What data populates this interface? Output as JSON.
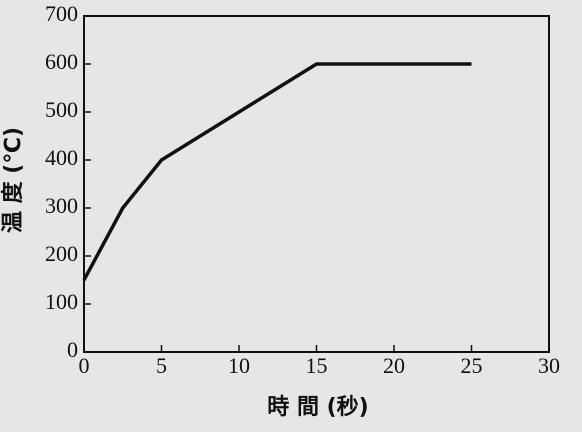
{
  "chart_data": {
    "type": "line",
    "y_label": "温 度 (℃)",
    "x_label": "時 間 (秒)",
    "x": [
      0,
      2.5,
      5,
      15,
      25
    ],
    "series": [
      {
        "color": "#111111",
        "values": [
          150,
          300,
          400,
          600,
          600
        ]
      }
    ],
    "xlim": [
      0,
      30
    ],
    "xticks": [
      0,
      5,
      10,
      15,
      20,
      25,
      30
    ],
    "ylim": [
      0,
      700
    ],
    "yticks": [
      0,
      100,
      200,
      300,
      400,
      500,
      600,
      700
    ],
    "grid": false
  }
}
